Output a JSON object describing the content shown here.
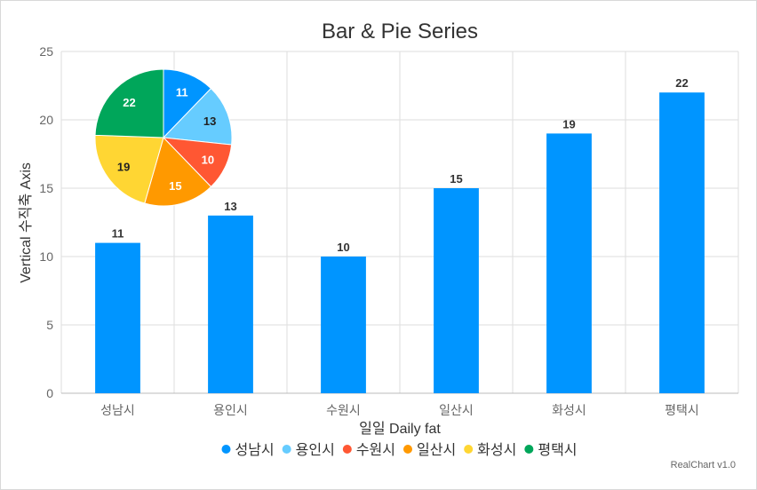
{
  "chart_data": {
    "type": "bar",
    "title": "Bar & Pie Series",
    "xlabel": "일일 Daily fat",
    "ylabel": "Vertical 수직축 Axis",
    "categories": [
      "성남시",
      "용인시",
      "수원시",
      "일산시",
      "화성시",
      "평택시"
    ],
    "values": [
      11,
      13,
      10,
      15,
      19,
      22
    ],
    "ylim": [
      0,
      25
    ],
    "yticks": [
      0,
      5,
      10,
      15,
      20,
      25
    ],
    "grid": true,
    "bar_color": "#0095ff",
    "pie": {
      "type": "pie",
      "labels": [
        "성남시",
        "용인시",
        "수원시",
        "일산시",
        "화성시",
        "평택시"
      ],
      "values": [
        11,
        13,
        10,
        15,
        19,
        22
      ],
      "colors": [
        "#0095ff",
        "#66ccff",
        "#ff5733",
        "#ff9900",
        "#ffd633",
        "#00a65a"
      ]
    },
    "legend_position": "bottom",
    "credit": "RealChart v1.0"
  }
}
